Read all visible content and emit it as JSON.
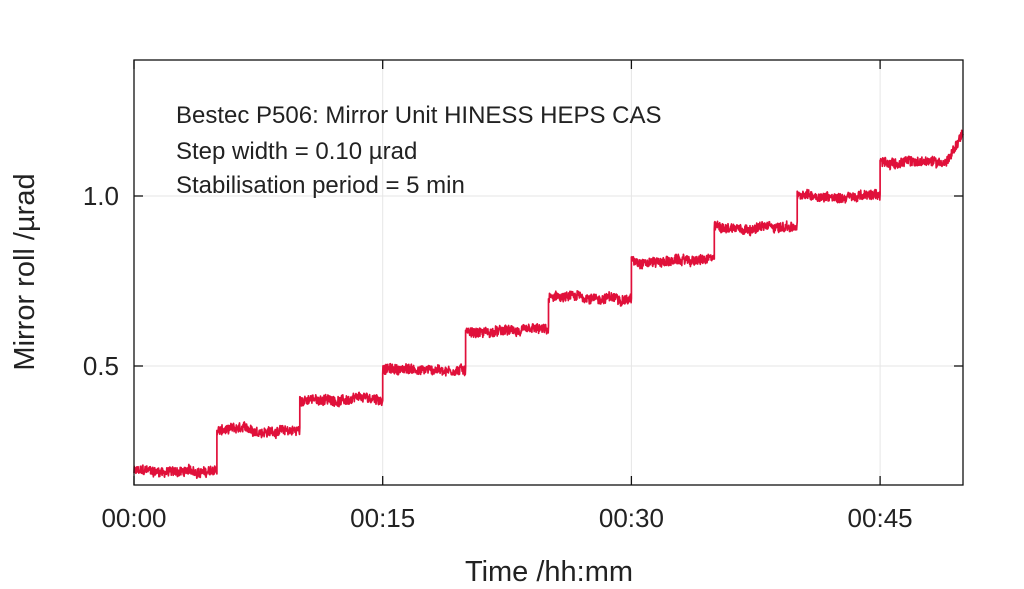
{
  "chart_data": {
    "type": "line",
    "title": "",
    "annotations": [
      "Bestec P506: Mirror Unit HINESS HEPS CAS",
      "Step width = 0.10 µrad",
      "Stabilisation period = 5 min"
    ],
    "xlabel": "Time /hh:mm",
    "ylabel": "Mirror roll /µrad",
    "x_unit": "min",
    "xlim": [
      0,
      50
    ],
    "ylim": [
      0.15,
      1.4
    ],
    "x_ticks": [
      {
        "value": 0,
        "label": "00:00"
      },
      {
        "value": 15,
        "label": "00:15"
      },
      {
        "value": 30,
        "label": "00:30"
      },
      {
        "value": 45,
        "label": "00:45"
      }
    ],
    "y_ticks": [
      {
        "value": 0.5,
        "label": "0.5"
      },
      {
        "value": 1.0,
        "label": "1.0"
      }
    ],
    "grid": true,
    "series": [
      {
        "color": "#e0103a",
        "steps": [
          {
            "start": 0,
            "end": 5,
            "level": 0.19
          },
          {
            "start": 5,
            "end": 10,
            "level": 0.31
          },
          {
            "start": 10,
            "end": 15,
            "level": 0.4
          },
          {
            "start": 15,
            "end": 20,
            "level": 0.49
          },
          {
            "start": 20,
            "end": 25,
            "level": 0.6
          },
          {
            "start": 25,
            "end": 30,
            "level": 0.7
          },
          {
            "start": 30,
            "end": 35,
            "level": 0.81
          },
          {
            "start": 35,
            "end": 40,
            "level": 0.91
          },
          {
            "start": 40,
            "end": 45,
            "level": 1.0
          },
          {
            "start": 45,
            "end": 50,
            "level": 1.1
          }
        ],
        "end_value": 1.19
      }
    ]
  }
}
